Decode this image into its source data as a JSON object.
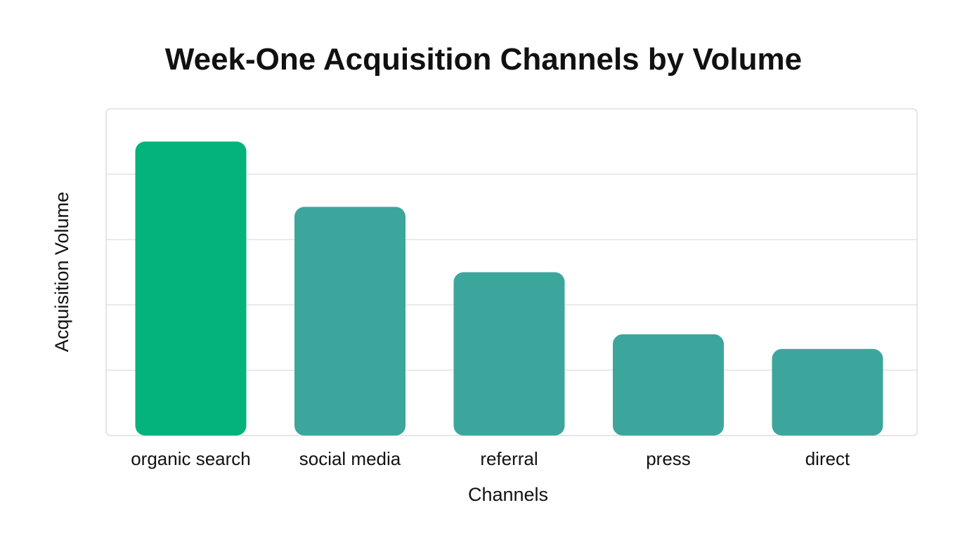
{
  "chart_data": {
    "type": "bar",
    "title": "Week-One Acquisition Channels by Volume",
    "xlabel": "Channels",
    "ylabel": "Acquisition Volume",
    "categories": [
      "organic search",
      "social media",
      "referral",
      "press",
      "direct"
    ],
    "values": [
      90,
      70,
      50,
      31,
      26.5
    ],
    "ylim": [
      0,
      100
    ],
    "grid": true,
    "y_tick_labels_shown": false,
    "legend": "none",
    "colors": {
      "highlight_bar": "#04B27C",
      "bar": "#3DA69C",
      "grid": "#DDDDDD",
      "frame": "#DDDDDD",
      "text": "#111111"
    },
    "highlight_index": 0
  }
}
